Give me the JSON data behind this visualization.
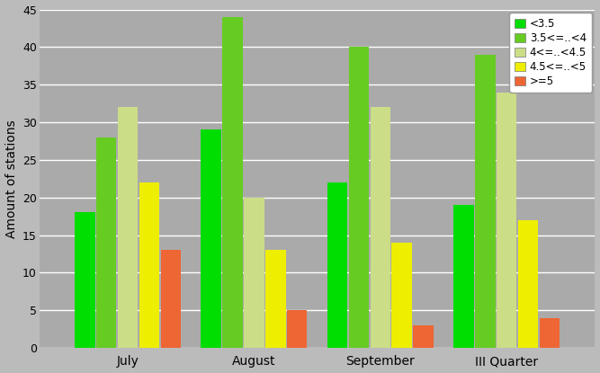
{
  "categories": [
    "July",
    "August",
    "September",
    "III Quarter"
  ],
  "series": [
    {
      "label": "<3.5",
      "color": "#00dd00",
      "values": [
        18,
        29,
        22,
        19
      ]
    },
    {
      "label": "3.5<=..<4",
      "color": "#66cc22",
      "values": [
        28,
        44,
        40,
        39
      ]
    },
    {
      "label": "4<=..<4.5",
      "color": "#ccdd88",
      "values": [
        32,
        20,
        32,
        34
      ]
    },
    {
      "label": "4.5<=..<5",
      "color": "#eeee00",
      "values": [
        22,
        13,
        14,
        17
      ]
    },
    {
      "label": ">=5",
      "color": "#ee6633",
      "values": [
        13,
        5,
        3,
        4
      ]
    }
  ],
  "ylabel": "Amount of stations",
  "ylim": [
    0,
    45
  ],
  "yticks": [
    0,
    5,
    10,
    15,
    20,
    25,
    30,
    35,
    40,
    45
  ],
  "fig_bg_color": "#bbbbbb",
  "plot_bg_color": "#aaaaaa",
  "grid_color": "#ffffff",
  "bar_width": 0.16,
  "group_width": 1.0,
  "legend_label_size": 8.5
}
